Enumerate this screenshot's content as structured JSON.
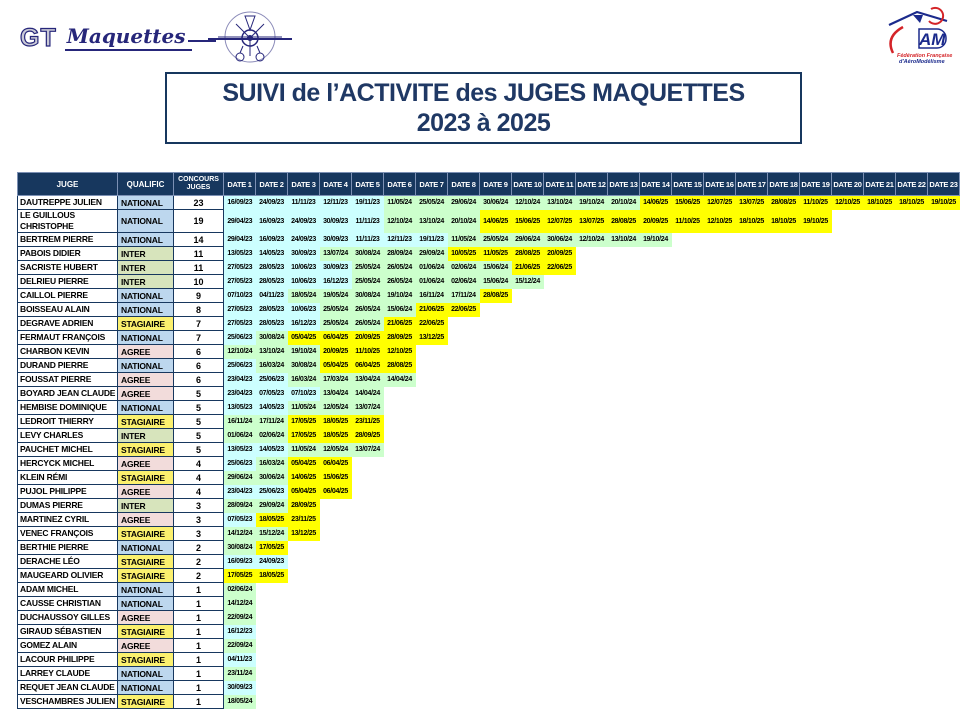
{
  "header": {
    "title_line1": "SUIVI de l’ACTIVITE des JUGES MAQUETTES",
    "title_line2": "2023 à 2025"
  },
  "logos": {
    "gt": {
      "monogram": "GT",
      "script": "Maquettes"
    },
    "ffam": {
      "acronym": "FFAM",
      "subtitle_line1": "Fédération Française",
      "subtitle_line2": "d'AéroModélisme"
    }
  },
  "table": {
    "headers": {
      "juge": "JUGE",
      "qualific": "QUALIFIC",
      "concours": "CONCOURS JUGES"
    },
    "date_headers": [
      "DATE 1",
      "DATE 2",
      "DATE 3",
      "DATE 4",
      "DATE 5",
      "DATE 6",
      "DATE 7",
      "DATE 8",
      "DATE 9",
      "DATE 10",
      "DATE 11",
      "DATE 12",
      "DATE 13",
      "DATE 14",
      "DATE 15",
      "DATE 16",
      "DATE 17",
      "DATE 18",
      "DATE 19",
      "DATE 20",
      "DATE 21",
      "DATE 22",
      "DATE 23"
    ],
    "rows": [
      {
        "name": "DAUTREPPE JULIEN",
        "qualific": "NATIONAL",
        "count": 23,
        "dates": [
          "16/09/23",
          "24/09/23",
          "11/11/23",
          "12/11/23",
          "19/11/23",
          "11/05/24",
          "25/05/24",
          "29/06/24",
          "30/06/24",
          "12/10/24",
          "13/10/24",
          "19/10/24",
          "20/10/24",
          "14/06/25",
          "15/06/25",
          "12/07/25",
          "13/07/25",
          "28/08/25",
          "11/10/25",
          "12/10/25",
          "18/10/25",
          "18/10/25",
          "19/10/25"
        ]
      },
      {
        "name": "LE GUILLOUS CHRISTOPHE",
        "qualific": "NATIONAL",
        "count": 19,
        "dates": [
          "29/04/23",
          "16/09/23",
          "24/09/23",
          "30/09/23",
          "11/11/23",
          "12/10/24",
          "13/10/24",
          "20/10/24",
          "14/06/25",
          "15/06/25",
          "12/07/25",
          "13/07/25",
          "28/08/25",
          "20/09/25",
          "11/10/25",
          "12/10/25",
          "18/10/25",
          "18/10/25",
          "19/10/25"
        ]
      },
      {
        "name": "BERTREM PIERRE",
        "qualific": "NATIONAL",
        "count": 14,
        "dates": [
          "29/04/23",
          "16/09/23",
          "24/09/23",
          "30/09/23",
          "11/11/23",
          "12/11/23",
          "19/11/23",
          "11/05/24",
          "25/05/24",
          "29/06/24",
          "30/06/24",
          "12/10/24",
          "13/10/24",
          "19/10/24"
        ]
      },
      {
        "name": "PABOIS DIDIER",
        "qualific": "INTER",
        "count": 11,
        "dates": [
          "13/05/23",
          "14/05/23",
          "30/09/23",
          "13/07/24",
          "30/08/24",
          "28/09/24",
          "29/09/24",
          "10/05/25",
          "11/05/25",
          "28/08/25",
          "20/09/25"
        ]
      },
      {
        "name": "SACRISTE HUBERT",
        "qualific": "INTER",
        "count": 11,
        "dates": [
          "27/05/23",
          "28/05/23",
          "10/06/23",
          "30/09/23",
          "25/05/24",
          "26/05/24",
          "01/06/24",
          "02/06/24",
          "15/06/24",
          "21/06/25",
          "22/06/25"
        ]
      },
      {
        "name": "DELRIEU PIERRE",
        "qualific": "INTER",
        "count": 10,
        "dates": [
          "27/05/23",
          "28/05/23",
          "10/06/23",
          "16/12/23",
          "25/05/24",
          "26/05/24",
          "01/06/24",
          "02/06/24",
          "15/06/24",
          "15/12/24"
        ]
      },
      {
        "name": "CAILLOL PIERRE",
        "qualific": "NATIONAL",
        "count": 9,
        "dates": [
          "07/10/23",
          "04/11/23",
          "18/05/24",
          "19/05/24",
          "30/08/24",
          "19/10/24",
          "16/11/24",
          "17/11/24",
          "28/08/25"
        ]
      },
      {
        "name": "BOISSEAU ALAIN",
        "qualific": "NATIONAL",
        "count": 8,
        "dates": [
          "27/05/23",
          "28/05/23",
          "10/06/23",
          "25/05/24",
          "26/05/24",
          "15/06/24",
          "21/06/25",
          "22/06/25"
        ]
      },
      {
        "name": "DEGRAVE ADRIEN",
        "qualific": "STAGIAIRE",
        "count": 7,
        "dates": [
          "27/05/23",
          "28/05/23",
          "16/12/23",
          "25/05/24",
          "26/05/24",
          "21/06/25",
          "22/06/25"
        ]
      },
      {
        "name": "FERMAUT FRANÇOIS",
        "qualific": "NATIONAL",
        "count": 7,
        "dates": [
          "25/06/23",
          "30/08/24",
          "05/04/25",
          "06/04/25",
          "20/09/25",
          "28/09/25",
          "13/12/25"
        ]
      },
      {
        "name": "CHARBON KEVIN",
        "qualific": "AGREE",
        "count": 6,
        "dates": [
          "12/10/24",
          "13/10/24",
          "19/10/24",
          "20/09/25",
          "11/10/25",
          "12/10/25"
        ]
      },
      {
        "name": "DURAND PIERRE",
        "qualific": "NATIONAL",
        "count": 6,
        "dates": [
          "25/06/23",
          "16/03/24",
          "30/08/24",
          "05/04/25",
          "06/04/25",
          "28/08/25"
        ]
      },
      {
        "name": "FOUSSAT PIERRE",
        "qualific": "AGREE",
        "count": 6,
        "dates": [
          "23/04/23",
          "25/06/23",
          "16/03/24",
          "17/03/24",
          "13/04/24",
          "14/04/24"
        ]
      },
      {
        "name": "BOYARD JEAN CLAUDE",
        "qualific": "AGREE",
        "count": 5,
        "dates": [
          "23/04/23",
          "07/05/23",
          "07/10/23",
          "13/04/24",
          "14/04/24"
        ]
      },
      {
        "name": "HEMBISE DOMINIQUE",
        "qualific": "NATIONAL",
        "count": 5,
        "dates": [
          "13/05/23",
          "14/05/23",
          "11/05/24",
          "12/05/24",
          "13/07/24"
        ]
      },
      {
        "name": "LEDROIT THIERRY",
        "qualific": "STAGIAIRE",
        "count": 5,
        "dates": [
          "16/11/24",
          "17/11/24",
          "17/05/25",
          "18/05/25",
          "23/11/25"
        ]
      },
      {
        "name": "LEVY CHARLES",
        "qualific": "INTER",
        "count": 5,
        "dates": [
          "01/06/24",
          "02/06/24",
          "17/05/25",
          "18/05/25",
          "28/09/25"
        ]
      },
      {
        "name": "PAUCHET MICHEL",
        "qualific": "STAGIAIRE",
        "count": 5,
        "dates": [
          "13/05/23",
          "14/05/23",
          "11/05/24",
          "12/05/24",
          "13/07/24"
        ]
      },
      {
        "name": "HERCYCK MICHEL",
        "qualific": "AGREE",
        "count": 4,
        "dates": [
          "25/06/23",
          "16/03/24",
          "05/04/25",
          "06/04/25"
        ]
      },
      {
        "name": "KLEIN RÉMI",
        "qualific": "STAGIAIRE",
        "count": 4,
        "dates": [
          "29/06/24",
          "30/06/24",
          "14/06/25",
          "15/06/25"
        ]
      },
      {
        "name": "PUJOL PHILIPPE",
        "qualific": "AGREE",
        "count": 4,
        "dates": [
          "23/04/23",
          "25/06/23",
          "05/04/25",
          "06/04/25"
        ]
      },
      {
        "name": "DUMAS PIERRE",
        "qualific": "INTER",
        "count": 3,
        "dates": [
          "28/09/24",
          "29/09/24",
          "28/09/25"
        ]
      },
      {
        "name": "MARTINEZ CYRIL",
        "qualific": "AGREE",
        "count": 3,
        "dates": [
          "07/05/23",
          "18/05/25",
          "23/11/25"
        ]
      },
      {
        "name": "VENEC FRANÇOIS",
        "qualific": "STAGIAIRE",
        "count": 3,
        "dates": [
          "14/12/24",
          "15/12/24",
          "13/12/25"
        ]
      },
      {
        "name": "BERTHIE PIERRE",
        "qualific": "NATIONAL",
        "count": 2,
        "dates": [
          "30/08/24",
          "17/05/25"
        ]
      },
      {
        "name": "DERACHE LÉO",
        "qualific": "STAGIAIRE",
        "count": 2,
        "dates": [
          "16/09/23",
          "24/09/23"
        ]
      },
      {
        "name": "MAUGEARD OLIVIER",
        "qualific": "STAGIAIRE",
        "count": 2,
        "dates": [
          "17/05/25",
          "18/05/25"
        ]
      },
      {
        "name": "ADAM MICHEL",
        "qualific": "NATIONAL",
        "count": 1,
        "dates": [
          "02/06/24"
        ]
      },
      {
        "name": "CAUSSE CHRISTIAN",
        "qualific": "NATIONAL",
        "count": 1,
        "dates": [
          "14/12/24"
        ]
      },
      {
        "name": "DUCHAUSSOY GILLES",
        "qualific": "AGREE",
        "count": 1,
        "dates": [
          "22/09/24"
        ]
      },
      {
        "name": "GIRAUD SÉBASTIEN",
        "qualific": "STAGIAIRE",
        "count": 1,
        "dates": [
          "16/12/23"
        ]
      },
      {
        "name": "GOMEZ ALAIN",
        "qualific": "AGREE",
        "count": 1,
        "dates": [
          "22/09/24"
        ]
      },
      {
        "name": "LACOUR PHILIPPE",
        "qualific": "STAGIAIRE",
        "count": 1,
        "dates": [
          "04/11/23"
        ]
      },
      {
        "name": "LARREY CLAUDE",
        "qualific": "NATIONAL",
        "count": 1,
        "dates": [
          "23/11/24"
        ]
      },
      {
        "name": "REQUET JEAN CLAUDE",
        "qualific": "NATIONAL",
        "count": 1,
        "dates": [
          "30/09/23"
        ]
      },
      {
        "name": "VESCHAMBRES JULIEN",
        "qualific": "STAGIAIRE",
        "count": 1,
        "dates": [
          "18/05/24"
        ]
      }
    ]
  },
  "colors": {
    "header_bg": "#17375E",
    "table_border": "#17375E",
    "title_text": "#1F3864",
    "logo_navy": "#26267A",
    "ffam_blue": "#1B2A8C",
    "ffam_red": "#D42428",
    "qualific": {
      "NATIONAL": "#BDD7EE",
      "INTER": "#D7E4BC",
      "STAGIAIRE": "#FBF06E",
      "AGREE": "#F2DCDB"
    },
    "year": {
      "2023": "#CCFFFF",
      "2024": "#CCFFCC",
      "2025": "#FFFF00"
    }
  },
  "icons": {
    "gt_plane": "airplane-front-icon",
    "ffam_plane": "glider-icon"
  }
}
